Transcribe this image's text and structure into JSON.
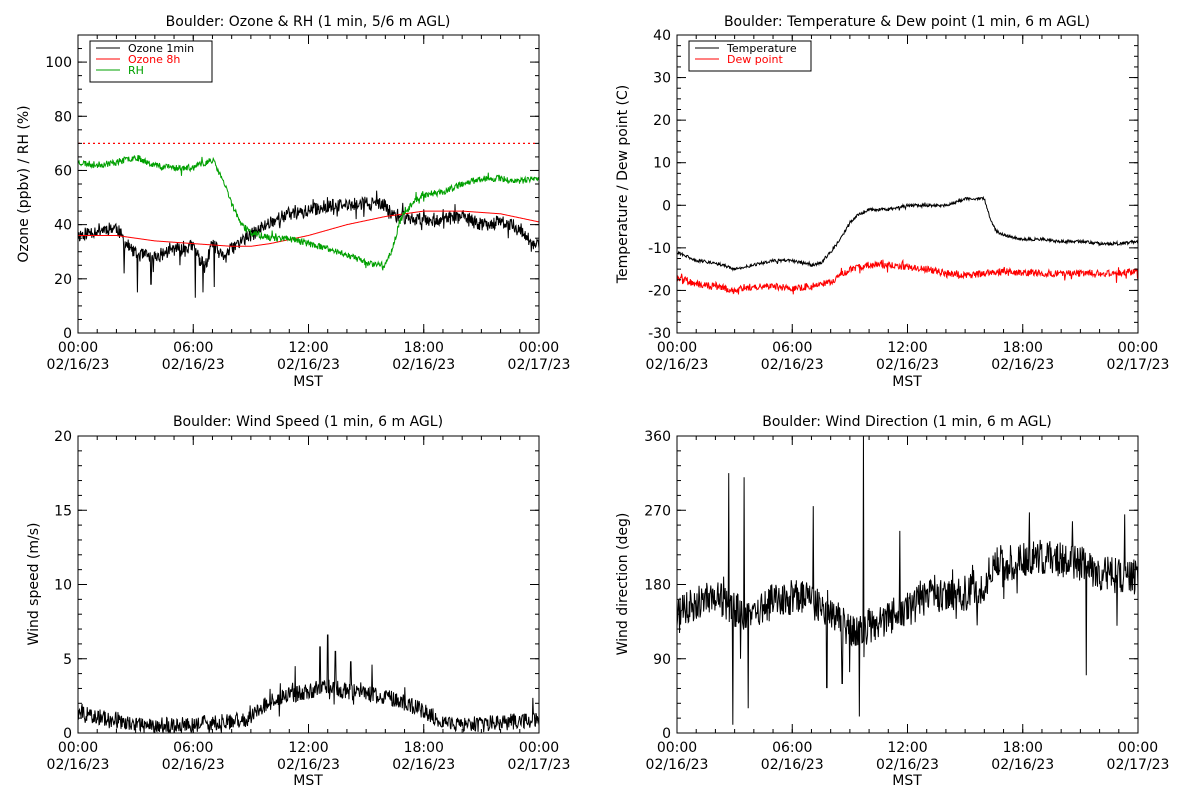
{
  "chart_data": [
    {
      "id": "ozone-rh",
      "type": "line",
      "title": "Boulder: Ozone & RH (1 min, 5/6 m AGL)",
      "xlabel": "MST",
      "ylabel": "Ozone (ppbv) / RH (%)",
      "x_range_hours": [
        0,
        24
      ],
      "x_ticks": [
        {
          "hour": 0,
          "time": "00:00",
          "date": "02/16/23"
        },
        {
          "hour": 6,
          "time": "06:00",
          "date": "02/16/23"
        },
        {
          "hour": 12,
          "time": "12:00",
          "date": "02/16/23"
        },
        {
          "hour": 18,
          "time": "18:00",
          "date": "02/16/23"
        },
        {
          "hour": 24,
          "time": "00:00",
          "date": "02/17/23"
        }
      ],
      "ylim": [
        0,
        110
      ],
      "y_ticks": [
        0,
        20,
        40,
        60,
        80,
        100
      ],
      "y_minor_step": 5,
      "reference_line": {
        "y": 70,
        "color": "#ff0000",
        "style": "dotted"
      },
      "legend": "top-left",
      "series": [
        {
          "name": "Ozone 1min",
          "color": "#000000",
          "noise": 2.5,
          "seed": 11,
          "hours": [
            0,
            1,
            2,
            2.5,
            3,
            4,
            5,
            6,
            6.6,
            7,
            7.5,
            8,
            8.5,
            9,
            10,
            11,
            12,
            13,
            14,
            15,
            16,
            16.3,
            16.8,
            17.5,
            18,
            19,
            20,
            21,
            22,
            23,
            23.5,
            24
          ],
          "values": [
            36,
            38,
            39,
            33,
            29,
            28,
            31,
            32,
            24,
            33,
            28,
            31,
            34,
            36,
            41,
            44,
            45,
            47,
            47,
            48,
            47,
            44,
            43,
            42,
            42,
            42,
            43,
            40,
            41,
            39,
            33,
            33
          ],
          "dips": [
            [
              2.4,
              22
            ],
            [
              3.1,
              15
            ],
            [
              3.8,
              18
            ],
            [
              5.3,
              25
            ],
            [
              6.1,
              13
            ],
            [
              6.5,
              15
            ],
            [
              7.1,
              17
            ],
            [
              7.7,
              26
            ],
            [
              13.5,
              43
            ],
            [
              17.9,
              38
            ],
            [
              22.4,
              35
            ],
            [
              23.6,
              30
            ]
          ]
        },
        {
          "name": "Ozone 8h",
          "color": "#ff0000",
          "noise": 0,
          "seed": 0,
          "hours": [
            0,
            2,
            4,
            6,
            8,
            9,
            10,
            12,
            14,
            16,
            18,
            20,
            22,
            24
          ],
          "values": [
            36,
            36,
            34,
            33,
            32,
            32,
            33,
            36,
            40,
            43,
            45,
            45,
            44,
            41
          ],
          "dips": []
        },
        {
          "name": "RH",
          "color": "#00a000",
          "noise": 1.2,
          "seed": 23,
          "hours": [
            0,
            1,
            2,
            3,
            4,
            5,
            6,
            7,
            7.5,
            8,
            8.5,
            9,
            10,
            11,
            12,
            13,
            14,
            15,
            16,
            16.3,
            16.8,
            17.5,
            18,
            19,
            20,
            21,
            22,
            23,
            24
          ],
          "values": [
            63,
            62,
            63,
            65,
            62,
            61,
            61,
            64,
            57,
            48,
            40,
            37,
            35,
            35,
            33,
            31,
            29,
            26,
            25,
            30,
            42,
            49,
            51,
            52,
            55,
            57,
            57,
            56,
            57
          ],
          "dips": []
        }
      ]
    },
    {
      "id": "temp-dew",
      "type": "line",
      "title": "Boulder: Temperature & Dew point (1 min, 6 m AGL)",
      "xlabel": "MST",
      "ylabel": "Temperature / Dew point (C)",
      "x_range_hours": [
        0,
        24
      ],
      "x_ticks": [
        {
          "hour": 0,
          "time": "00:00",
          "date": "02/16/23"
        },
        {
          "hour": 6,
          "time": "06:00",
          "date": "02/16/23"
        },
        {
          "hour": 12,
          "time": "12:00",
          "date": "02/16/23"
        },
        {
          "hour": 18,
          "time": "18:00",
          "date": "02/16/23"
        },
        {
          "hour": 24,
          "time": "00:00",
          "date": "02/17/23"
        }
      ],
      "ylim": [
        -30,
        40
      ],
      "y_ticks": [
        -30,
        -20,
        -10,
        0,
        10,
        20,
        30,
        40
      ],
      "y_minor_step": 2.5,
      "reference_line": null,
      "legend": "top-left",
      "series": [
        {
          "name": "Temperature",
          "color": "#000000",
          "noise": 0.35,
          "seed": 31,
          "hours": [
            0,
            1,
            2,
            3,
            4,
            5,
            6,
            7,
            7.5,
            8,
            8.5,
            9,
            9.5,
            10,
            11,
            12,
            13,
            14,
            15,
            16,
            16.3,
            16.6,
            17,
            18,
            19,
            20,
            21,
            22,
            23,
            24
          ],
          "values": [
            -11,
            -13,
            -13.5,
            -15,
            -14,
            -13,
            -13,
            -14,
            -13.5,
            -11,
            -8,
            -4,
            -2,
            -1,
            -1,
            0,
            0,
            0,
            1.5,
            1.5,
            -3,
            -6,
            -7,
            -8,
            -8,
            -8.5,
            -8.5,
            -9,
            -9,
            -8.5
          ],
          "dips": []
        },
        {
          "name": "Dew point",
          "color": "#ff0000",
          "noise": 0.8,
          "seed": 47,
          "hours": [
            0,
            1,
            2,
            3,
            4,
            5,
            6,
            7,
            8,
            9,
            10,
            11,
            12,
            13,
            14,
            15,
            16,
            17,
            18,
            19,
            20,
            21,
            22,
            23,
            24
          ],
          "values": [
            -17,
            -18.5,
            -19,
            -20,
            -19,
            -19,
            -19.5,
            -19,
            -18,
            -15,
            -14,
            -14,
            -14.5,
            -15,
            -16,
            -16.5,
            -16,
            -15.5,
            -16,
            -16,
            -16,
            -16,
            -16,
            -16,
            -15.5
          ],
          "dips": []
        }
      ]
    },
    {
      "id": "wind-speed",
      "type": "line",
      "title": "Boulder: Wind Speed (1 min, 6 m AGL)",
      "xlabel": "MST",
      "ylabel": "Wind speed (m/s)",
      "x_range_hours": [
        0,
        24
      ],
      "x_ticks": [
        {
          "hour": 0,
          "time": "00:00",
          "date": "02/16/23"
        },
        {
          "hour": 6,
          "time": "06:00",
          "date": "02/16/23"
        },
        {
          "hour": 12,
          "time": "12:00",
          "date": "02/16/23"
        },
        {
          "hour": 18,
          "time": "18:00",
          "date": "02/16/23"
        },
        {
          "hour": 24,
          "time": "00:00",
          "date": "02/17/23"
        }
      ],
      "ylim": [
        0,
        20
      ],
      "y_ticks": [
        0,
        5,
        10,
        15,
        20
      ],
      "y_minor_step": 1,
      "reference_line": null,
      "legend": "none",
      "series": [
        {
          "name": "",
          "color": "#000000",
          "noise": 0.55,
          "seed": 59,
          "min": 0,
          "hours": [
            0,
            1,
            2,
            3,
            4,
            5,
            6,
            7,
            8,
            9,
            10,
            11,
            12,
            13,
            14,
            15,
            16,
            17,
            18,
            19,
            20,
            21,
            22,
            23,
            24
          ],
          "values": [
            1.3,
            1.1,
            0.9,
            0.6,
            0.5,
            0.5,
            0.6,
            0.7,
            0.8,
            1.0,
            2.2,
            2.5,
            2.8,
            3.2,
            2.8,
            2.6,
            2.5,
            2.0,
            1.5,
            0.8,
            0.6,
            0.6,
            0.7,
            0.8,
            0.9
          ],
          "dips": [
            [
              13.0,
              6.6
            ],
            [
              12.6,
              5.8
            ],
            [
              13.4,
              5.5
            ],
            [
              11.3,
              4.5
            ],
            [
              15.3,
              4.6
            ],
            [
              14.2,
              4.8
            ]
          ]
        }
      ]
    },
    {
      "id": "wind-direction",
      "type": "line",
      "title": "Boulder: Wind Direction (1 min, 6 m AGL)",
      "xlabel": "MST",
      "ylabel": "Wind direction (deg)",
      "x_range_hours": [
        0,
        24
      ],
      "x_ticks": [
        {
          "hour": 0,
          "time": "00:00",
          "date": "02/16/23"
        },
        {
          "hour": 6,
          "time": "06:00",
          "date": "02/16/23"
        },
        {
          "hour": 12,
          "time": "12:00",
          "date": "02/16/23"
        },
        {
          "hour": 18,
          "time": "18:00",
          "date": "02/16/23"
        },
        {
          "hour": 24,
          "time": "00:00",
          "date": "02/17/23"
        }
      ],
      "ylim": [
        0,
        360
      ],
      "y_ticks": [
        0,
        90,
        180,
        270,
        360
      ],
      "y_minor_step": 18,
      "reference_line": null,
      "legend": "none",
      "series": [
        {
          "name": "",
          "color": "#000000",
          "noise": 22,
          "seed": 71,
          "min": 0,
          "max": 360,
          "hours": [
            0,
            1,
            2,
            3,
            4,
            5,
            6,
            7,
            8,
            9,
            10,
            11,
            12,
            13,
            14,
            15,
            16,
            16.5,
            17,
            18,
            19,
            20,
            21,
            22,
            23,
            24
          ],
          "values": [
            140,
            160,
            165,
            150,
            140,
            160,
            165,
            160,
            150,
            120,
            130,
            140,
            150,
            165,
            165,
            170,
            175,
            210,
            205,
            210,
            215,
            210,
            205,
            195,
            190,
            190
          ],
          "dips": [
            [
              2.7,
              315
            ],
            [
              2.9,
              10
            ],
            [
              3.3,
              90
            ],
            [
              3.5,
              310
            ],
            [
              3.7,
              30
            ],
            [
              7.1,
              275
            ],
            [
              7.8,
              55
            ],
            [
              8.6,
              60
            ],
            [
              9.5,
              20
            ],
            [
              9.7,
              360
            ],
            [
              11.6,
              245
            ],
            [
              21.3,
              70
            ],
            [
              23.3,
              265
            ],
            [
              22.9,
              130
            ]
          ]
        }
      ]
    }
  ]
}
